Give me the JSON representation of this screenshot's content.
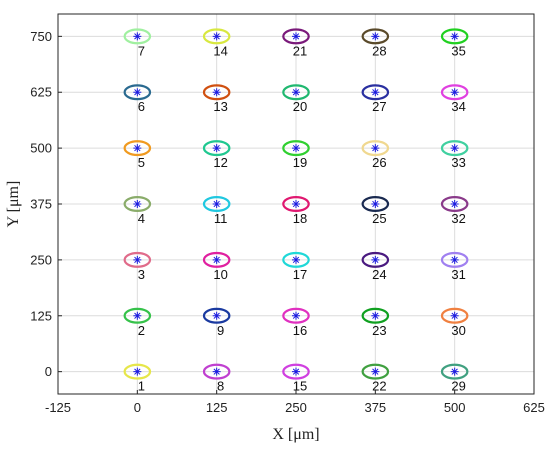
{
  "chart_data": {
    "type": "scatter",
    "xlabel": "X [μm]",
    "ylabel": "Y [μm]",
    "xlim": [
      -125,
      625
    ],
    "ylim": [
      -50,
      800
    ],
    "xticks": [
      -125,
      0,
      125,
      250,
      375,
      500,
      625
    ],
    "yticks": [
      0,
      125,
      250,
      375,
      500,
      625,
      750
    ],
    "grid": true,
    "ellipse_rx_data": 20,
    "ellipse_ry_data": 28,
    "points": [
      {
        "label": "1",
        "x": 0,
        "y": 0,
        "color": "#e6e64a"
      },
      {
        "label": "2",
        "x": 0,
        "y": 125,
        "color": "#36c24a"
      },
      {
        "label": "3",
        "x": 0,
        "y": 250,
        "color": "#e06b8a"
      },
      {
        "label": "4",
        "x": 0,
        "y": 375,
        "color": "#8aac6a"
      },
      {
        "label": "5",
        "x": 0,
        "y": 500,
        "color": "#f09a20"
      },
      {
        "label": "6",
        "x": 0,
        "y": 625,
        "color": "#2a6a90"
      },
      {
        "label": "7",
        "x": 0,
        "y": 750,
        "color": "#a0f0a0"
      },
      {
        "label": "8",
        "x": 125,
        "y": 0,
        "color": "#c040d0"
      },
      {
        "label": "9",
        "x": 125,
        "y": 125,
        "color": "#1a3aa0"
      },
      {
        "label": "10",
        "x": 125,
        "y": 250,
        "color": "#e020a0"
      },
      {
        "label": "11",
        "x": 125,
        "y": 375,
        "color": "#20c8e0"
      },
      {
        "label": "12",
        "x": 125,
        "y": 500,
        "color": "#20c890"
      },
      {
        "label": "13",
        "x": 125,
        "y": 625,
        "color": "#d05010"
      },
      {
        "label": "14",
        "x": 125,
        "y": 750,
        "color": "#d8e840"
      },
      {
        "label": "15",
        "x": 250,
        "y": 0,
        "color": "#d040e0"
      },
      {
        "label": "16",
        "x": 250,
        "y": 125,
        "color": "#e030c0"
      },
      {
        "label": "17",
        "x": 250,
        "y": 250,
        "color": "#20d8d8"
      },
      {
        "label": "18",
        "x": 250,
        "y": 375,
        "color": "#e01870"
      },
      {
        "label": "19",
        "x": 250,
        "y": 500,
        "color": "#30d030"
      },
      {
        "label": "20",
        "x": 250,
        "y": 625,
        "color": "#20b870"
      },
      {
        "label": "21",
        "x": 250,
        "y": 750,
        "color": "#7a1a7a"
      },
      {
        "label": "22",
        "x": 375,
        "y": 0,
        "color": "#40a040"
      },
      {
        "label": "23",
        "x": 375,
        "y": 125,
        "color": "#10a020"
      },
      {
        "label": "24",
        "x": 375,
        "y": 250,
        "color": "#4a1a80"
      },
      {
        "label": "25",
        "x": 375,
        "y": 375,
        "color": "#1a2a50"
      },
      {
        "label": "26",
        "x": 375,
        "y": 500,
        "color": "#f0d890"
      },
      {
        "label": "27",
        "x": 375,
        "y": 625,
        "color": "#2a30a0"
      },
      {
        "label": "28",
        "x": 375,
        "y": 750,
        "color": "#5a4a2a"
      },
      {
        "label": "29",
        "x": 500,
        "y": 0,
        "color": "#40a080"
      },
      {
        "label": "30",
        "x": 500,
        "y": 125,
        "color": "#f08040"
      },
      {
        "label": "31",
        "x": 500,
        "y": 250,
        "color": "#a080f0"
      },
      {
        "label": "32",
        "x": 500,
        "y": 375,
        "color": "#8a3a8a"
      },
      {
        "label": "33",
        "x": 500,
        "y": 500,
        "color": "#40d0a0"
      },
      {
        "label": "34",
        "x": 500,
        "y": 625,
        "color": "#e040e0"
      },
      {
        "label": "35",
        "x": 500,
        "y": 750,
        "color": "#20d020"
      }
    ],
    "marker_color": "#1a1ae0"
  }
}
